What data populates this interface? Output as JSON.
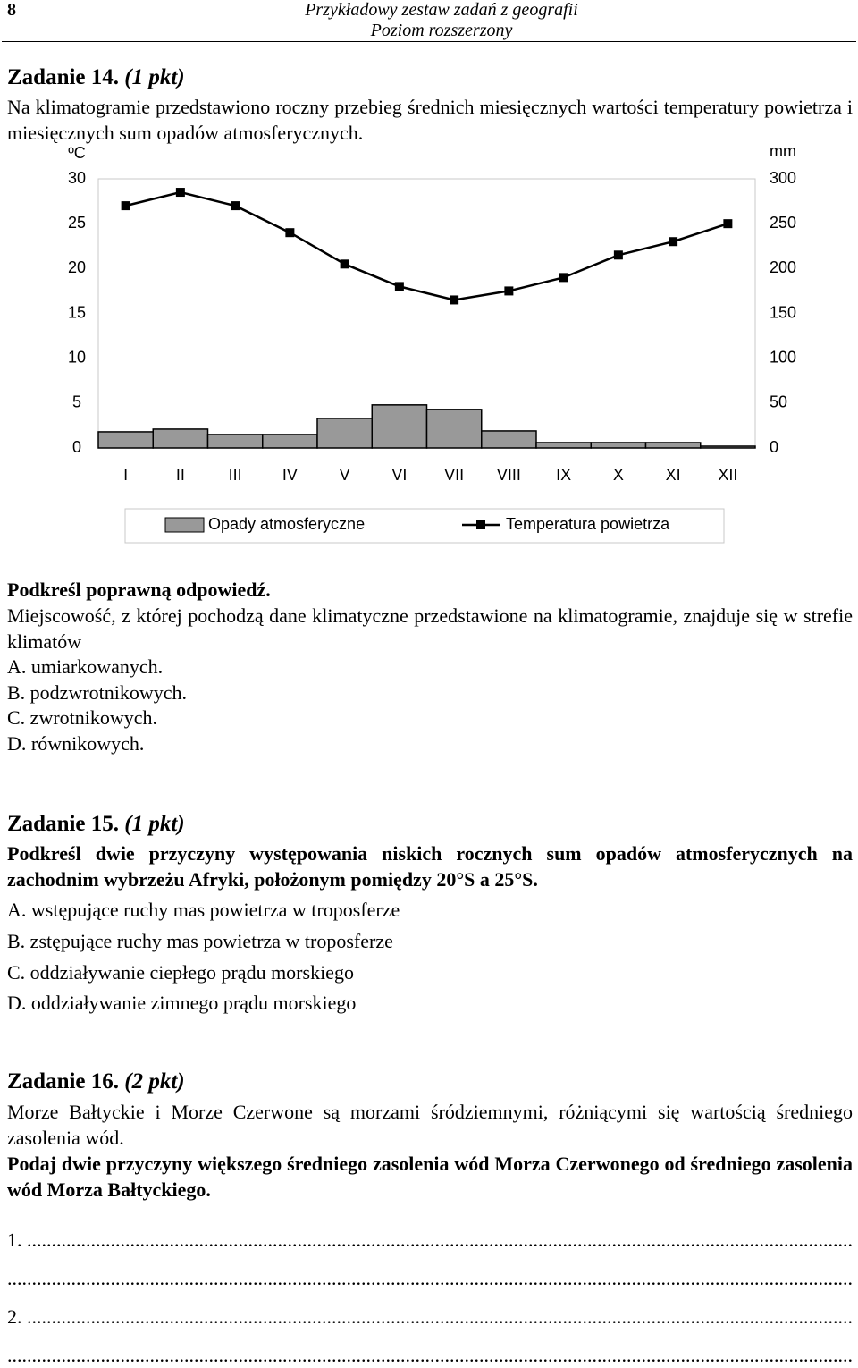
{
  "header": {
    "page_number": "8",
    "title": "Przykładowy zestaw zadań z geografii",
    "subtitle": "Poziom rozszerzony"
  },
  "task14": {
    "title": "Zadanie 14.",
    "points": "(1 pkt)",
    "intro": "Na klimatogramie przedstawiono roczny przebieg średnich miesięcznych wartości temperatury powietrza i miesięcznych sum opadów atmosferycznych.",
    "instruction": "Podkreśl poprawną odpowiedź.",
    "question": "Miejscowość, z której pochodzą dane klimatyczne przedstawione na klimatogramie, znajduje się w strefie klimatów",
    "options": [
      "A. umiarkowanych.",
      "B. podzwrotnikowych.",
      "C. zwrotnikowych.",
      "D. równikowych."
    ]
  },
  "chart_data": {
    "type": "combo",
    "y_label": "ºC",
    "y2_label": "mm",
    "categories": [
      "I",
      "II",
      "III",
      "IV",
      "V",
      "VI",
      "VII",
      "VIII",
      "IX",
      "X",
      "XI",
      "XII"
    ],
    "series": [
      {
        "name": "Opady atmosferyczne",
        "type": "bar",
        "axis": "y2",
        "color": "#999999",
        "values": [
          18,
          21,
          15,
          15,
          33,
          48,
          43,
          19,
          6,
          6,
          6,
          2
        ]
      },
      {
        "name": "Temperatura powietrza",
        "type": "line",
        "color": "#000000",
        "values": [
          27,
          28.5,
          27,
          24,
          20.5,
          18,
          16.5,
          17.5,
          19,
          21.5,
          23,
          25
        ]
      }
    ],
    "ylim": [
      0,
      30
    ],
    "yticks": [
      0,
      5,
      10,
      15,
      20,
      25,
      30
    ],
    "y2lim": [
      0,
      300
    ],
    "y2ticks": [
      0,
      50,
      100,
      150,
      200,
      250,
      300
    ],
    "grid": false,
    "legend": "bottom"
  },
  "task15": {
    "title": "Zadanie 15.",
    "points": "(1 pkt)",
    "instruction": "Podkreśl dwie przyczyny występowania niskich rocznych sum opadów atmosferycznych na zachodnim wybrzeżu Afryki, położonym pomiędzy 20°S a 25°S.",
    "options": [
      "A. wstępujące ruchy mas powietrza w troposferze",
      "B. zstępujące ruchy mas powietrza w troposferze",
      "C. oddziaływanie ciepłego prądu morskiego",
      "D. oddziaływanie zimnego prądu morskiego"
    ]
  },
  "task16": {
    "title": "Zadanie 16.",
    "points": "(2 pkt)",
    "intro": "Morze Bałtyckie i Morze Czerwone są morzami śródziemnymi, różniącymi się wartością średniego zasolenia wód.",
    "instruction": "Podaj dwie przyczyny większego średniego zasolenia wód Morza Czerwonego od średniego zasolenia wód Morza Bałtyckiego.",
    "answer_lines": [
      "1. .........................................................................................................................................................................",
      "..............................................................................................................................................................................",
      "2. .........................................................................................................................................................................",
      ".............................................................................................................................................................................."
    ]
  }
}
